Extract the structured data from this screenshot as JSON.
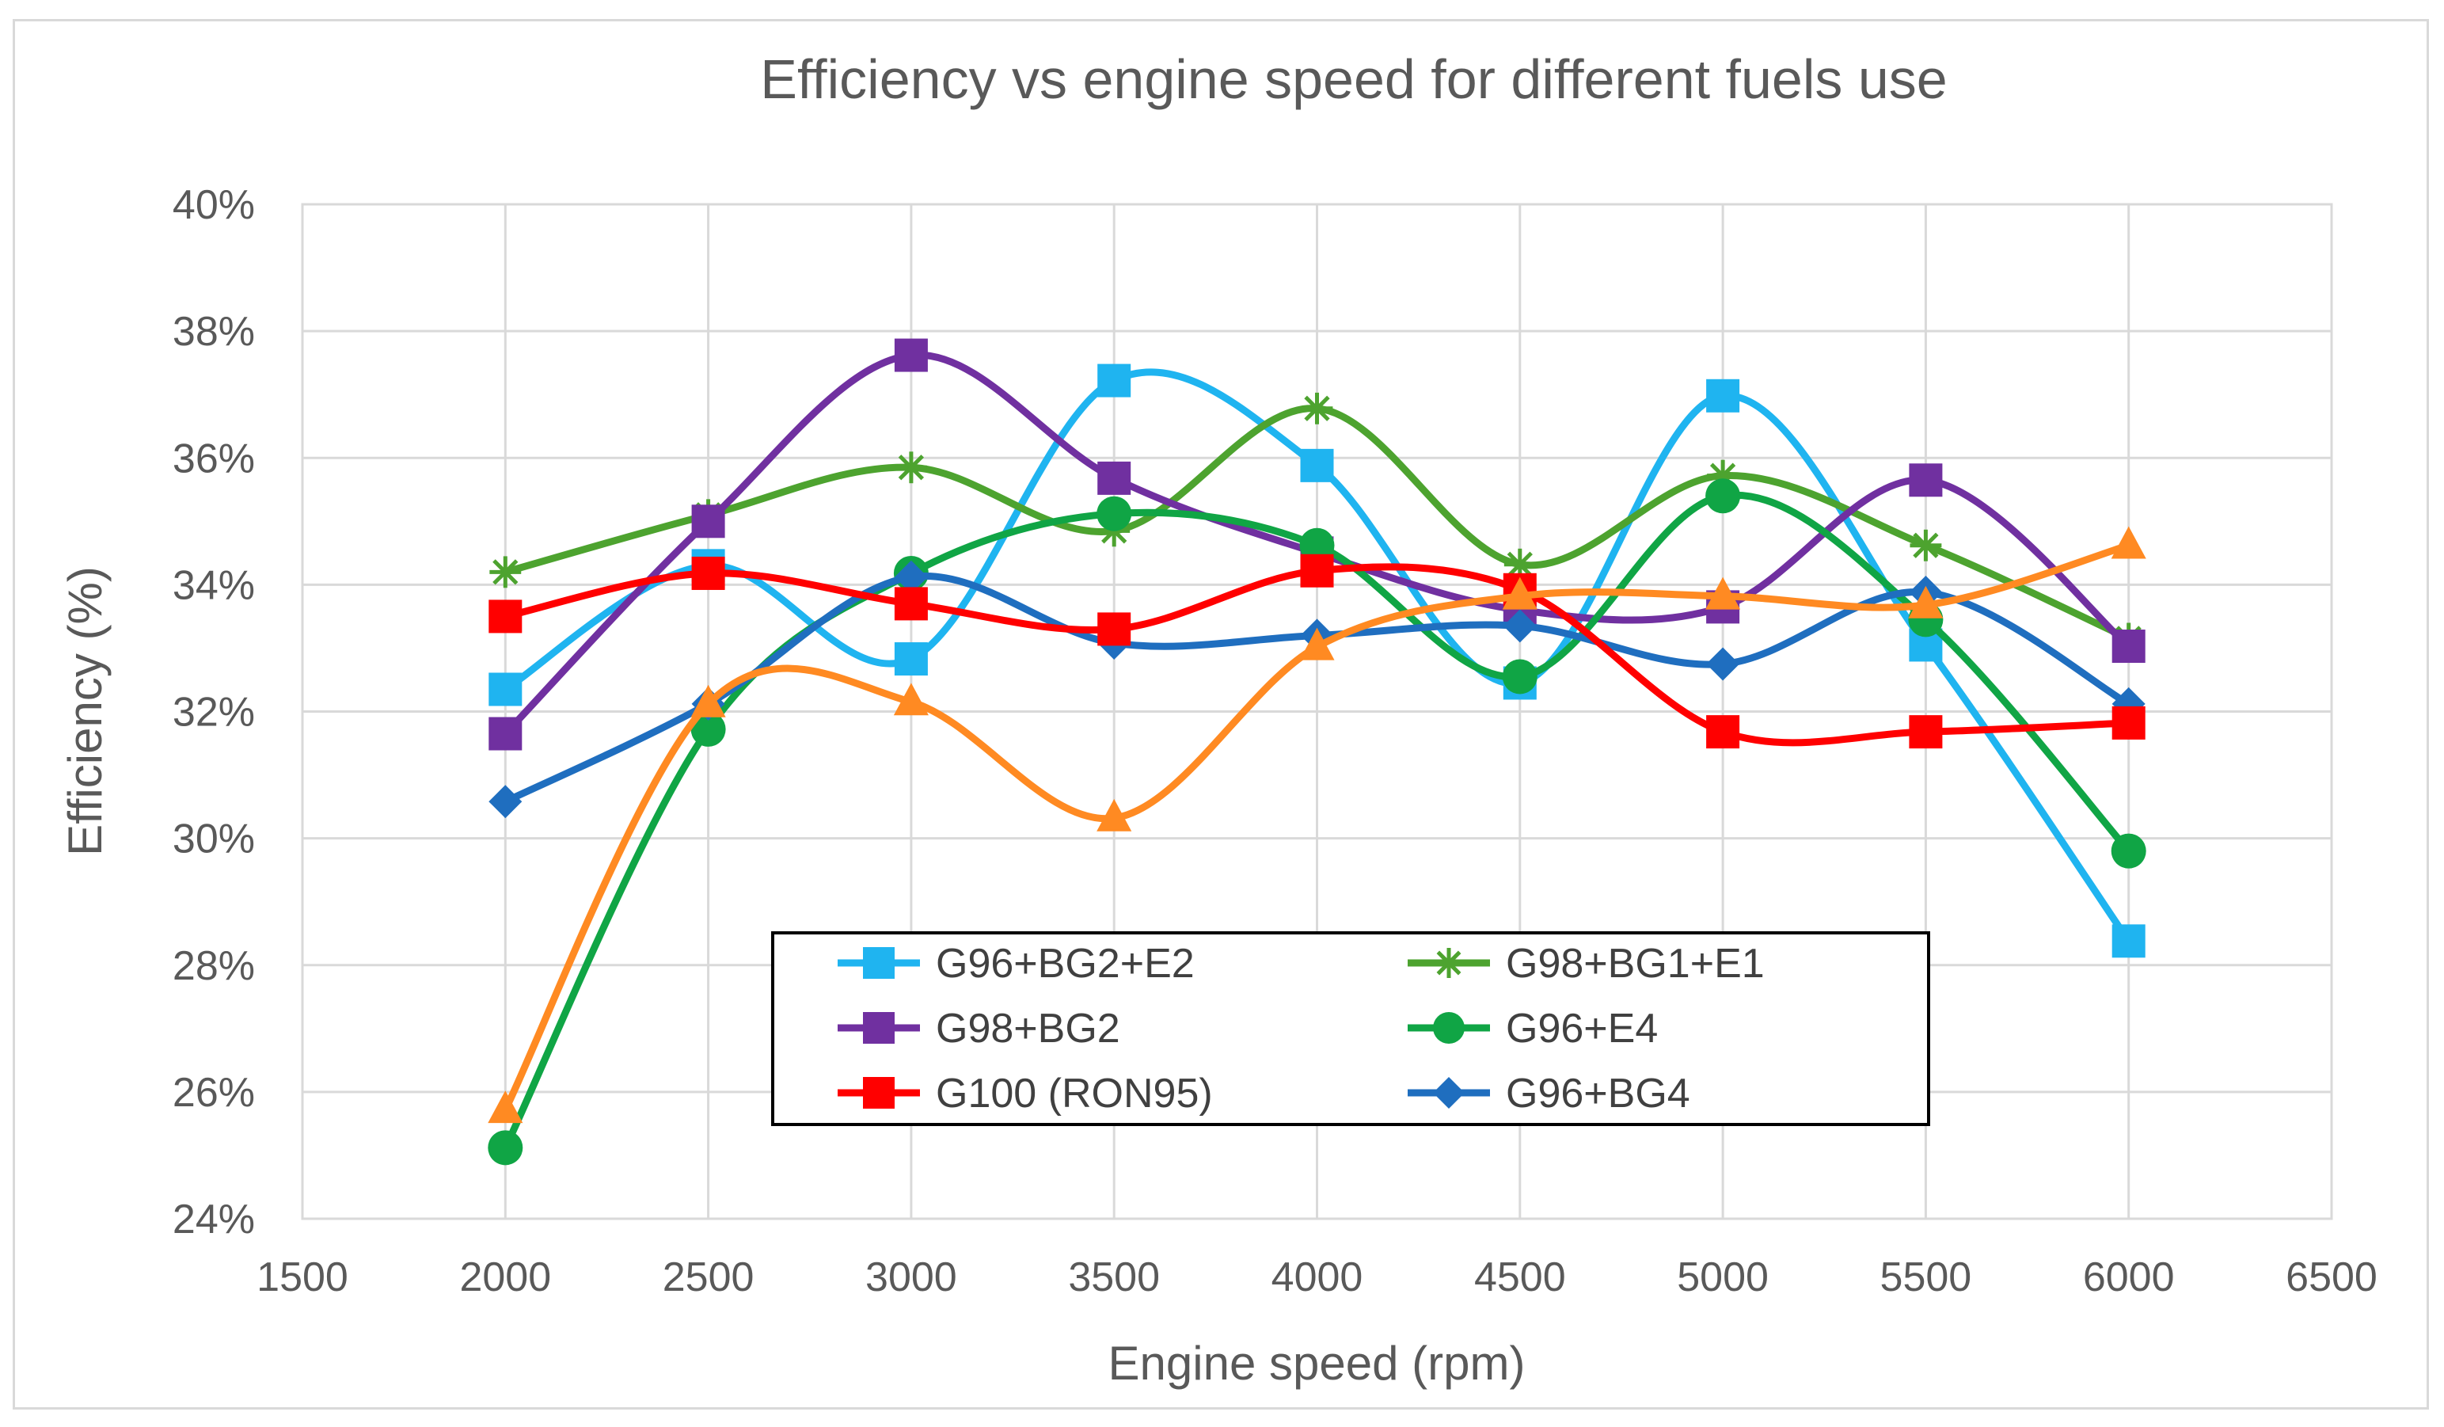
{
  "chart_data": {
    "type": "line",
    "title": "Efficiency vs engine speed for different fuels use",
    "xlabel": "Engine speed (rpm)",
    "ylabel": "Efficiency (%)",
    "xlim": [
      1500,
      6500
    ],
    "ylim": [
      0.24,
      0.4
    ],
    "xticks": [
      "1500",
      "2000",
      "2500",
      "3000",
      "3500",
      "4000",
      "4500",
      "5000",
      "5500",
      "6000",
      "6500"
    ],
    "yticks": [
      "24%",
      "26%",
      "28%",
      "30%",
      "32%",
      "34%",
      "36%",
      "38%",
      "40%"
    ],
    "grid": true,
    "legend_position": "bottom-center",
    "x": [
      2000,
      2500,
      3000,
      3500,
      4000,
      4500,
      5000,
      5500,
      6000
    ],
    "series": [
      {
        "name": "G96+BG2+E2",
        "color": "#1fb4f0",
        "marker": "square",
        "values": [
          0.3235,
          0.343,
          0.3283,
          0.3722,
          0.3588,
          0.3245,
          0.3698,
          0.3305,
          0.2838
        ]
      },
      {
        "name": "G98+BG1+E1",
        "color": "#4da32f",
        "marker": "star",
        "values": [
          0.342,
          0.351,
          0.3585,
          0.3485,
          0.3678,
          0.3432,
          0.3572,
          0.3462,
          0.3315
        ]
      },
      {
        "name": "G98+BG2",
        "color": "#7030a0",
        "marker": "square",
        "values": [
          0.3165,
          0.35,
          0.3762,
          0.3568,
          0.345,
          0.336,
          0.3365,
          0.3565,
          0.3303
        ]
      },
      {
        "name": "G96+E4",
        "color": "#10a545",
        "marker": "circle",
        "values": [
          0.2512,
          0.3172,
          0.3418,
          0.3512,
          0.3462,
          0.3255,
          0.354,
          0.3345,
          0.298
        ]
      },
      {
        "name": "G100 (RON95)",
        "color": "#ff0000",
        "marker": "square",
        "values": [
          0.335,
          0.3418,
          0.337,
          0.333,
          0.3422,
          0.3392,
          0.3168,
          0.3168,
          0.3182
        ]
      },
      {
        "name": "G96+BG4",
        "color": "#1f6ebf",
        "marker": "diamond",
        "values": [
          0.3058,
          0.3212,
          0.3412,
          0.3308,
          0.332,
          0.3335,
          0.3275,
          0.3388,
          0.3212
        ]
      },
      {
        "color": "#ff8a22",
        "marker": "triangle",
        "values": [
          0.2572,
          0.3212,
          0.3215,
          0.3032,
          0.3302,
          0.3382,
          0.3382,
          0.3368,
          0.3462
        ]
      }
    ]
  }
}
